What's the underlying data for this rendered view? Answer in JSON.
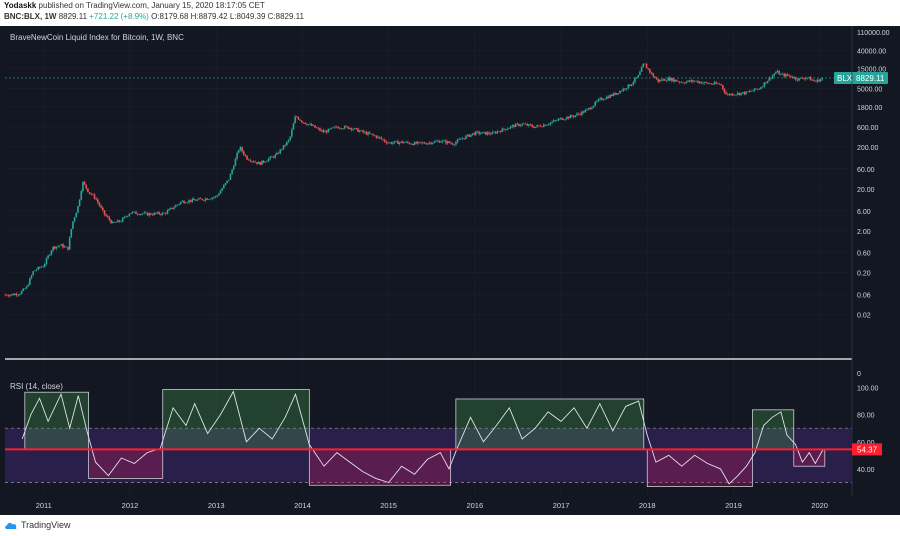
{
  "header": {
    "author": "Yodaskk",
    "published": "published on TradingView.com, January 15, 2020 18:17:05 CET",
    "symbol": "BNC:BLX, 1W",
    "last": "8829.11",
    "change": "+721.22 (+8.9%)",
    "ohlc": "O:8179.68 H:8879.42 L:8049.39 C:8829.11"
  },
  "footer": {
    "brand": "TradingView"
  },
  "colors": {
    "background": "#131722",
    "up": "#26a69a",
    "down": "#ef5350",
    "rsi_line": "#e0e3eb",
    "rsi_band": "#2a1f4a",
    "level_line": "#ff1e2d",
    "last_price": "#26a69a"
  },
  "chart_data": [
    {
      "type": "candlestick",
      "title": "BraveNewCoin Liquid Index for Bitcoin, 1W, BNC",
      "scale": "log",
      "ylim": [
        0.004,
        110000
      ],
      "y_tick_labels": [
        "110000.00",
        "40000.00",
        "15000.00",
        "5000.00",
        "1800.00",
        "600.00",
        "200.00",
        "60.00",
        "20.00",
        "6.00",
        "2.00",
        "0.60",
        "0.20",
        "0.06",
        "0.02"
      ],
      "x_tick_labels": [
        "2011",
        "2012",
        "2013",
        "2014",
        "2015",
        "2016",
        "2017",
        "2018",
        "2019",
        "2020"
      ],
      "xlim": [
        2010.55,
        2020.12
      ],
      "series_points": [
        {
          "t": 2010.55,
          "v": 0.06
        },
        {
          "t": 2010.62,
          "v": 0.06
        },
        {
          "t": 2010.72,
          "v": 0.065
        },
        {
          "t": 2010.8,
          "v": 0.09
        },
        {
          "t": 2010.88,
          "v": 0.22
        },
        {
          "t": 2011.0,
          "v": 0.3
        },
        {
          "t": 2011.1,
          "v": 0.8
        },
        {
          "t": 2011.2,
          "v": 0.9
        },
        {
          "t": 2011.28,
          "v": 0.75
        },
        {
          "t": 2011.33,
          "v": 3
        },
        {
          "t": 2011.4,
          "v": 8
        },
        {
          "t": 2011.45,
          "v": 29
        },
        {
          "t": 2011.52,
          "v": 17
        },
        {
          "t": 2011.6,
          "v": 12
        },
        {
          "t": 2011.7,
          "v": 5
        },
        {
          "t": 2011.8,
          "v": 3
        },
        {
          "t": 2011.9,
          "v": 3.5
        },
        {
          "t": 2012.0,
          "v": 5.5
        },
        {
          "t": 2012.2,
          "v": 5
        },
        {
          "t": 2012.4,
          "v": 5.2
        },
        {
          "t": 2012.6,
          "v": 10
        },
        {
          "t": 2012.8,
          "v": 11
        },
        {
          "t": 2013.0,
          "v": 13
        },
        {
          "t": 2013.15,
          "v": 35
        },
        {
          "t": 2013.27,
          "v": 200
        },
        {
          "t": 2013.35,
          "v": 110
        },
        {
          "t": 2013.5,
          "v": 80
        },
        {
          "t": 2013.7,
          "v": 130
        },
        {
          "t": 2013.85,
          "v": 300
        },
        {
          "t": 2013.92,
          "v": 1100
        },
        {
          "t": 2014.0,
          "v": 800
        },
        {
          "t": 2014.1,
          "v": 650
        },
        {
          "t": 2014.25,
          "v": 450
        },
        {
          "t": 2014.4,
          "v": 600
        },
        {
          "t": 2014.55,
          "v": 580
        },
        {
          "t": 2014.7,
          "v": 450
        },
        {
          "t": 2014.85,
          "v": 360
        },
        {
          "t": 2015.0,
          "v": 250
        },
        {
          "t": 2015.15,
          "v": 260
        },
        {
          "t": 2015.3,
          "v": 240
        },
        {
          "t": 2015.45,
          "v": 250
        },
        {
          "t": 2015.6,
          "v": 280
        },
        {
          "t": 2015.75,
          "v": 240
        },
        {
          "t": 2015.85,
          "v": 320
        },
        {
          "t": 2016.0,
          "v": 430
        },
        {
          "t": 2016.2,
          "v": 420
        },
        {
          "t": 2016.45,
          "v": 640
        },
        {
          "t": 2016.55,
          "v": 700
        },
        {
          "t": 2016.7,
          "v": 600
        },
        {
          "t": 2016.85,
          "v": 720
        },
        {
          "t": 2017.0,
          "v": 950
        },
        {
          "t": 2017.15,
          "v": 1100
        },
        {
          "t": 2017.3,
          "v": 1500
        },
        {
          "t": 2017.45,
          "v": 2700
        },
        {
          "t": 2017.6,
          "v": 3500
        },
        {
          "t": 2017.7,
          "v": 4500
        },
        {
          "t": 2017.8,
          "v": 6000
        },
        {
          "t": 2017.9,
          "v": 10000
        },
        {
          "t": 2017.96,
          "v": 19500
        },
        {
          "t": 2018.05,
          "v": 11000
        },
        {
          "t": 2018.12,
          "v": 7500
        },
        {
          "t": 2018.25,
          "v": 8500
        },
        {
          "t": 2018.4,
          "v": 7000
        },
        {
          "t": 2018.55,
          "v": 7500
        },
        {
          "t": 2018.7,
          "v": 6500
        },
        {
          "t": 2018.85,
          "v": 6300
        },
        {
          "t": 2018.92,
          "v": 3500
        },
        {
          "t": 2019.0,
          "v": 3700
        },
        {
          "t": 2019.15,
          "v": 3900
        },
        {
          "t": 2019.3,
          "v": 5000
        },
        {
          "t": 2019.4,
          "v": 8000
        },
        {
          "t": 2019.5,
          "v": 12500
        },
        {
          "t": 2019.55,
          "v": 10500
        },
        {
          "t": 2019.65,
          "v": 10000
        },
        {
          "t": 2019.75,
          "v": 8200
        },
        {
          "t": 2019.85,
          "v": 9200
        },
        {
          "t": 2019.95,
          "v": 7200
        },
        {
          "t": 2020.04,
          "v": 8829.11
        }
      ],
      "last_price": {
        "label": "BLX",
        "value": "8829.11"
      }
    },
    {
      "type": "line",
      "title": "RSI (14, close)",
      "ylim": [
        23,
        104
      ],
      "y_tick_labels": [
        "100.00",
        "80.00",
        "60.00",
        "40.00"
      ],
      "bands": [
        30,
        70
      ],
      "level": {
        "value": 54.37,
        "label": "54.37"
      },
      "series_points": [
        {
          "t": 2010.75,
          "v": 62
        },
        {
          "t": 2010.85,
          "v": 80
        },
        {
          "t": 2010.95,
          "v": 92
        },
        {
          "t": 2011.05,
          "v": 75
        },
        {
          "t": 2011.2,
          "v": 95
        },
        {
          "t": 2011.3,
          "v": 70
        },
        {
          "t": 2011.4,
          "v": 94
        },
        {
          "t": 2011.5,
          "v": 68
        },
        {
          "t": 2011.6,
          "v": 45
        },
        {
          "t": 2011.75,
          "v": 35
        },
        {
          "t": 2011.9,
          "v": 48
        },
        {
          "t": 2012.05,
          "v": 44
        },
        {
          "t": 2012.2,
          "v": 52
        },
        {
          "t": 2012.35,
          "v": 55
        },
        {
          "t": 2012.5,
          "v": 85
        },
        {
          "t": 2012.65,
          "v": 72
        },
        {
          "t": 2012.75,
          "v": 88
        },
        {
          "t": 2012.9,
          "v": 66
        },
        {
          "t": 2013.05,
          "v": 80
        },
        {
          "t": 2013.2,
          "v": 97
        },
        {
          "t": 2013.35,
          "v": 60
        },
        {
          "t": 2013.5,
          "v": 70
        },
        {
          "t": 2013.65,
          "v": 62
        },
        {
          "t": 2013.8,
          "v": 78
        },
        {
          "t": 2013.92,
          "v": 95
        },
        {
          "t": 2014.08,
          "v": 58
        },
        {
          "t": 2014.25,
          "v": 42
        },
        {
          "t": 2014.4,
          "v": 52
        },
        {
          "t": 2014.55,
          "v": 45
        },
        {
          "t": 2014.7,
          "v": 38
        },
        {
          "t": 2014.85,
          "v": 33
        },
        {
          "t": 2015.0,
          "v": 30
        },
        {
          "t": 2015.15,
          "v": 42
        },
        {
          "t": 2015.3,
          "v": 36
        },
        {
          "t": 2015.45,
          "v": 47
        },
        {
          "t": 2015.6,
          "v": 52
        },
        {
          "t": 2015.7,
          "v": 40
        },
        {
          "t": 2015.8,
          "v": 56
        },
        {
          "t": 2015.95,
          "v": 78
        },
        {
          "t": 2016.1,
          "v": 60
        },
        {
          "t": 2016.25,
          "v": 72
        },
        {
          "t": 2016.4,
          "v": 85
        },
        {
          "t": 2016.55,
          "v": 62
        },
        {
          "t": 2016.7,
          "v": 70
        },
        {
          "t": 2016.85,
          "v": 82
        },
        {
          "t": 2017.0,
          "v": 75
        },
        {
          "t": 2017.15,
          "v": 85
        },
        {
          "t": 2017.3,
          "v": 70
        },
        {
          "t": 2017.45,
          "v": 88
        },
        {
          "t": 2017.6,
          "v": 68
        },
        {
          "t": 2017.75,
          "v": 86
        },
        {
          "t": 2017.9,
          "v": 90
        },
        {
          "t": 2018.0,
          "v": 65
        },
        {
          "t": 2018.1,
          "v": 45
        },
        {
          "t": 2018.25,
          "v": 50
        },
        {
          "t": 2018.4,
          "v": 42
        },
        {
          "t": 2018.55,
          "v": 50
        },
        {
          "t": 2018.7,
          "v": 44
        },
        {
          "t": 2018.85,
          "v": 40
        },
        {
          "t": 2018.95,
          "v": 29
        },
        {
          "t": 2019.05,
          "v": 35
        },
        {
          "t": 2019.15,
          "v": 42
        },
        {
          "t": 2019.25,
          "v": 52
        },
        {
          "t": 2019.35,
          "v": 72
        },
        {
          "t": 2019.45,
          "v": 78
        },
        {
          "t": 2019.55,
          "v": 82
        },
        {
          "t": 2019.62,
          "v": 65
        },
        {
          "t": 2019.72,
          "v": 58
        },
        {
          "t": 2019.8,
          "v": 45
        },
        {
          "t": 2019.88,
          "v": 52
        },
        {
          "t": 2019.95,
          "v": 44
        },
        {
          "t": 2020.04,
          "v": 54.37
        }
      ],
      "highlight_zones": [
        {
          "from": 2010.78,
          "to": 2011.52,
          "kind": "overbought"
        },
        {
          "from": 2011.52,
          "to": 2012.38,
          "kind": "oversold"
        },
        {
          "from": 2012.38,
          "to": 2014.08,
          "kind": "overbought"
        },
        {
          "from": 2014.08,
          "to": 2015.72,
          "kind": "oversold"
        },
        {
          "from": 2015.78,
          "to": 2017.96,
          "kind": "overbought"
        },
        {
          "from": 2018.0,
          "to": 2019.22,
          "kind": "oversold"
        },
        {
          "from": 2019.22,
          "to": 2019.7,
          "kind": "overbought"
        },
        {
          "from": 2019.7,
          "to": 2020.06,
          "kind": "oversold"
        }
      ]
    }
  ]
}
